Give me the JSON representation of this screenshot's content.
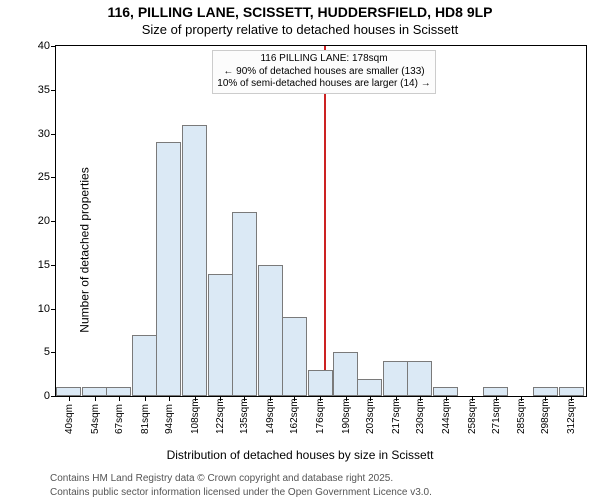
{
  "titles": {
    "main": "116, PILLING LANE, SCISSETT, HUDDERSFIELD, HD8 9LP",
    "sub": "Size of property relative to detached houses in Scissett"
  },
  "ylabel": "Number of detached properties",
  "xlabel": "Distribution of detached houses by size in Scissett",
  "footer": {
    "line1": "Contains HM Land Registry data © Crown copyright and database right 2025.",
    "line2": "Contains public sector information licensed under the Open Government Licence v3.0."
  },
  "chart": {
    "type": "histogram",
    "xlim": [
      33,
      320
    ],
    "ylim": [
      0,
      40
    ],
    "yticks": [
      0,
      5,
      10,
      15,
      20,
      25,
      30,
      35,
      40
    ],
    "xticks": [
      40,
      54,
      67,
      81,
      94,
      108,
      122,
      135,
      149,
      162,
      176,
      190,
      203,
      217,
      230,
      244,
      258,
      271,
      285,
      298,
      312
    ],
    "xtick_suffix": "sqm",
    "bars": [
      {
        "x": 40,
        "v": 1
      },
      {
        "x": 54,
        "v": 1
      },
      {
        "x": 67,
        "v": 1
      },
      {
        "x": 81,
        "v": 7
      },
      {
        "x": 94,
        "v": 29
      },
      {
        "x": 108,
        "v": 31
      },
      {
        "x": 122,
        "v": 14
      },
      {
        "x": 135,
        "v": 21
      },
      {
        "x": 149,
        "v": 15
      },
      {
        "x": 162,
        "v": 9
      },
      {
        "x": 176,
        "v": 3
      },
      {
        "x": 190,
        "v": 5
      },
      {
        "x": 203,
        "v": 2
      },
      {
        "x": 217,
        "v": 4
      },
      {
        "x": 230,
        "v": 4
      },
      {
        "x": 244,
        "v": 1
      },
      {
        "x": 258,
        "v": 0
      },
      {
        "x": 271,
        "v": 1
      },
      {
        "x": 285,
        "v": 0
      },
      {
        "x": 298,
        "v": 1
      },
      {
        "x": 312,
        "v": 1
      }
    ],
    "bar_fill": "#dbe9f5",
    "bar_border": "#7a7a7a",
    "bar_width_units": 13.6,
    "reference_line": {
      "x": 178,
      "color": "#cc2222",
      "width": 2
    },
    "annotation": {
      "lines": [
        "116 PILLING LANE: 178sqm",
        "← 90% of detached houses are smaller (133)",
        "10% of semi-detached houses are larger (14) →"
      ],
      "bg": "#fcfcfc",
      "border": "#cccccc"
    },
    "plot_bg": "#ffffff",
    "axis_color": "#000000"
  }
}
